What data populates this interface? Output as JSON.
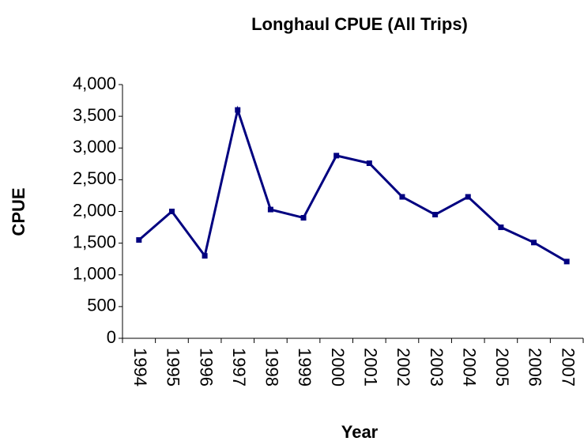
{
  "chart_data": {
    "type": "line",
    "title": "Longhaul CPUE (All Trips)",
    "x_label": "Year",
    "y_label": "CPUE",
    "categories": [
      "1994",
      "1995",
      "1996",
      "1997",
      "1998",
      "1999",
      "2000",
      "2001",
      "2002",
      "2003",
      "2004",
      "2005",
      "2006",
      "2007"
    ],
    "values": [
      1550,
      2000,
      1300,
      3600,
      2030,
      1900,
      2880,
      2760,
      2230,
      1950,
      2230,
      1750,
      1510,
      1210
    ],
    "color": "#000080",
    "ylim": [
      0,
      4000
    ],
    "yticks": [
      0,
      500,
      {
        "value": 1000,
        "label": "1,000"
      },
      {
        "value": 1500,
        "label": "1,500"
      },
      {
        "value": 2000,
        "label": "2,000"
      },
      {
        "value": 2500,
        "label": "2,500"
      },
      {
        "value": 3000,
        "label": "3,000"
      },
      {
        "value": 3500,
        "label": "3,500"
      },
      {
        "value": 4000,
        "label": "4,000"
      }
    ],
    "grid": false
  }
}
